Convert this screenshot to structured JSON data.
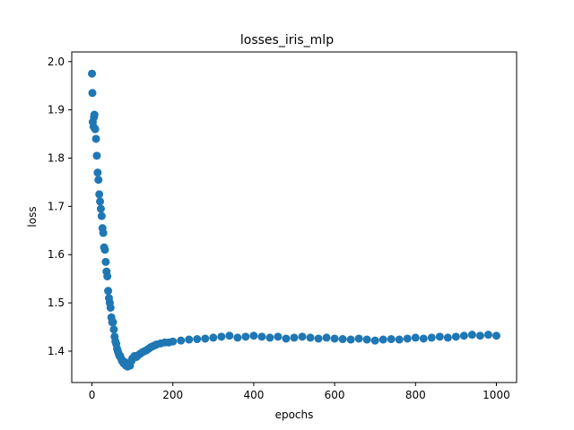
{
  "chart_data": {
    "type": "scatter",
    "title": "losses_iris_mlp",
    "xlabel": "epochs",
    "ylabel": "loss",
    "xlim": [
      -50,
      1050
    ],
    "ylim": [
      1.335,
      2.02
    ],
    "xticks": [
      0,
      200,
      400,
      600,
      800,
      1000
    ],
    "yticks": [
      1.4,
      1.5,
      1.6,
      1.7,
      1.8,
      1.9,
      2.0
    ],
    "xtick_labels": [
      "0",
      "200",
      "400",
      "600",
      "800",
      "1000"
    ],
    "ytick_labels": [
      "1.4",
      "1.5",
      "1.6",
      "1.7",
      "1.8",
      "1.9",
      "2.0"
    ],
    "grid": false,
    "marker_color": "#1f77b4",
    "series": [
      {
        "x": [
          0,
          1,
          2,
          4,
          5,
          6,
          8,
          10,
          12,
          14,
          16,
          18,
          20,
          22,
          24,
          26,
          28,
          30,
          32,
          34,
          36,
          38,
          40,
          42,
          44,
          46,
          48,
          50,
          52,
          54,
          56,
          58,
          60,
          62,
          64,
          66,
          68,
          70,
          72,
          74,
          76,
          78,
          80,
          82,
          84,
          86,
          88,
          90,
          92,
          94,
          96,
          98,
          100,
          105,
          110,
          115,
          120,
          125,
          130,
          135,
          140,
          145,
          150,
          155,
          160,
          170,
          180,
          190,
          200,
          220,
          240,
          260,
          280,
          300,
          320,
          340,
          360,
          380,
          400,
          420,
          440,
          460,
          480,
          500,
          520,
          540,
          560,
          580,
          600,
          620,
          640,
          660,
          680,
          700,
          720,
          740,
          760,
          780,
          800,
          820,
          840,
          860,
          880,
          900,
          920,
          940,
          960,
          980,
          1000
        ],
        "y": [
          1.975,
          1.935,
          1.875,
          1.865,
          1.885,
          1.89,
          1.86,
          1.84,
          1.805,
          1.77,
          1.755,
          1.725,
          1.71,
          1.695,
          1.68,
          1.655,
          1.645,
          1.615,
          1.61,
          1.585,
          1.565,
          1.555,
          1.525,
          1.51,
          1.5,
          1.49,
          1.47,
          1.46,
          1.46,
          1.445,
          1.43,
          1.42,
          1.415,
          1.405,
          1.4,
          1.395,
          1.39,
          1.39,
          1.385,
          1.38,
          1.38,
          1.375,
          1.378,
          1.372,
          1.37,
          1.375,
          1.368,
          1.372,
          1.375,
          1.37,
          1.378,
          1.38,
          1.385,
          1.39,
          1.388,
          1.392,
          1.395,
          1.398,
          1.4,
          1.402,
          1.405,
          1.408,
          1.41,
          1.412,
          1.414,
          1.416,
          1.418,
          1.418,
          1.42,
          1.422,
          1.424,
          1.425,
          1.426,
          1.428,
          1.43,
          1.432,
          1.428,
          1.43,
          1.432,
          1.43,
          1.428,
          1.43,
          1.426,
          1.428,
          1.43,
          1.428,
          1.426,
          1.428,
          1.426,
          1.425,
          1.424,
          1.426,
          1.424,
          1.422,
          1.424,
          1.425,
          1.424,
          1.426,
          1.428,
          1.426,
          1.428,
          1.43,
          1.428,
          1.43,
          1.432,
          1.434,
          1.432,
          1.434,
          1.432
        ]
      }
    ]
  }
}
